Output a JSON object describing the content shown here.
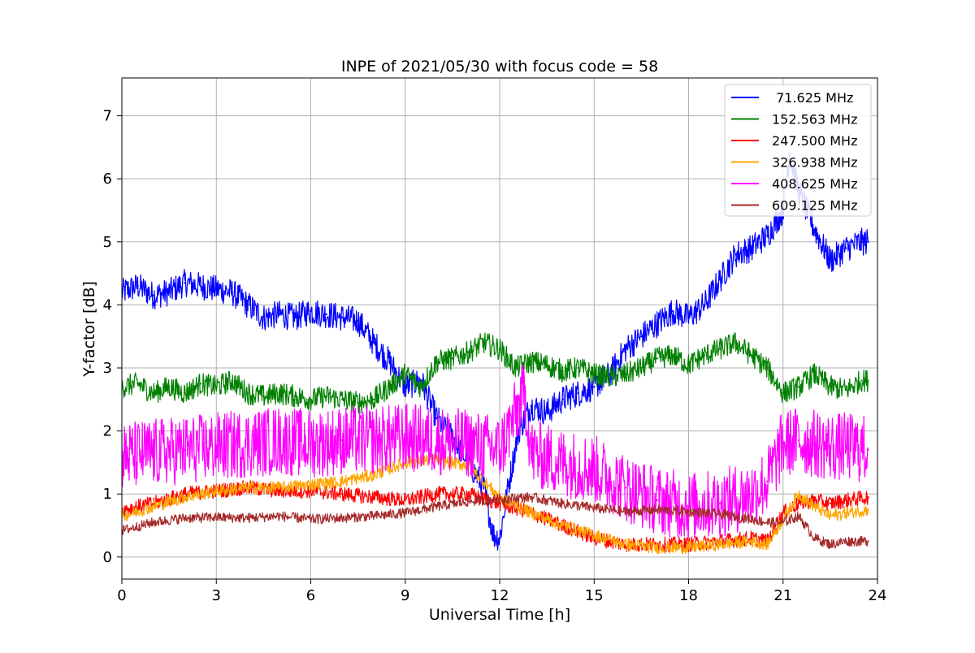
{
  "chart_data": {
    "type": "line",
    "title": "INPE of 2021/05/30 with focus code = 58",
    "xlabel": "Universal Time [h]",
    "ylabel": "Y-factor [dB]",
    "xlim": [
      0,
      24
    ],
    "ylim": [
      -0.35,
      7.6
    ],
    "x_ticks": [
      0,
      3,
      6,
      9,
      12,
      15,
      18,
      21,
      24
    ],
    "y_ticks": [
      0,
      1,
      2,
      3,
      4,
      5,
      6,
      7
    ],
    "grid": true,
    "legend_position": "top-right",
    "series": [
      {
        "name": " 71.625 MHz",
        "color": "#0000ff",
        "x": [
          0,
          0.5,
          1,
          1.5,
          2,
          2.5,
          3,
          3.5,
          4,
          4.5,
          5,
          5.5,
          6,
          6.5,
          7,
          7.5,
          8,
          8.5,
          9,
          9.5,
          10,
          10.5,
          11,
          11.5,
          11.8,
          12,
          12.3,
          12.6,
          13,
          13.5,
          14,
          14.5,
          15,
          15.5,
          16,
          16.5,
          17,
          17.5,
          18,
          18.5,
          19,
          19.5,
          20,
          20.5,
          21,
          21.2,
          21.5,
          22,
          22.5,
          23,
          23.5,
          23.7
        ],
        "y": [
          4.2,
          4.3,
          4.15,
          4.2,
          4.35,
          4.3,
          4.25,
          4.2,
          4.0,
          3.8,
          3.85,
          3.8,
          3.9,
          3.85,
          3.8,
          3.75,
          3.4,
          3.1,
          2.7,
          2.8,
          2.2,
          1.9,
          1.5,
          1.1,
          0.35,
          0.3,
          1.2,
          2.0,
          2.4,
          2.3,
          2.5,
          2.6,
          2.7,
          2.9,
          3.3,
          3.5,
          3.7,
          3.9,
          3.8,
          4.0,
          4.4,
          4.8,
          4.9,
          5.1,
          5.5,
          6.4,
          5.8,
          5.2,
          4.7,
          4.9,
          5.0,
          5.0
        ]
      },
      {
        "name": "152.563 MHz",
        "color": "#008000",
        "x": [
          0,
          0.5,
          1,
          1.5,
          2,
          2.5,
          3,
          3.5,
          4,
          4.5,
          5,
          5.5,
          6,
          6.5,
          7,
          7.5,
          8,
          8.5,
          9,
          9.5,
          10,
          10.5,
          11,
          11.5,
          12,
          12.5,
          13,
          13.5,
          14,
          14.5,
          15,
          15.5,
          16,
          16.5,
          17,
          17.5,
          18,
          18.5,
          19,
          19.5,
          20,
          20.5,
          21,
          21.5,
          22,
          22.5,
          23,
          23.5,
          23.7
        ],
        "y": [
          2.7,
          2.75,
          2.6,
          2.7,
          2.6,
          2.75,
          2.7,
          2.8,
          2.6,
          2.55,
          2.6,
          2.55,
          2.5,
          2.55,
          2.5,
          2.45,
          2.5,
          2.7,
          2.9,
          2.7,
          3.1,
          3.15,
          3.25,
          3.4,
          3.3,
          3.0,
          3.1,
          3.05,
          2.95,
          3.0,
          2.9,
          2.85,
          2.9,
          3.0,
          3.15,
          3.2,
          3.05,
          3.2,
          3.3,
          3.4,
          3.2,
          3.0,
          2.6,
          2.7,
          2.9,
          2.7,
          2.65,
          2.8,
          2.8
        ]
      },
      {
        "name": "247.500 MHz",
        "color": "#ff0000",
        "x": [
          0,
          1,
          2,
          3,
          4,
          5,
          6,
          7,
          8,
          9,
          10,
          11,
          12,
          13,
          14,
          15,
          16,
          17,
          18,
          19,
          20,
          20.5,
          21,
          21.5,
          22,
          22.5,
          23,
          23.7
        ],
        "y": [
          0.75,
          0.85,
          1.0,
          1.05,
          1.1,
          1.05,
          1.05,
          1.0,
          0.95,
          0.9,
          1.0,
          1.0,
          0.85,
          0.7,
          0.5,
          0.3,
          0.2,
          0.2,
          0.2,
          0.25,
          0.3,
          0.25,
          0.7,
          0.85,
          0.9,
          0.85,
          0.9,
          0.95
        ]
      },
      {
        "name": "326.938 MHz",
        "color": "#ffa500",
        "x": [
          0,
          1,
          2,
          3,
          4,
          5,
          6,
          7,
          8,
          9,
          10,
          11,
          12,
          13,
          14,
          15,
          16,
          17,
          18,
          19,
          20,
          20.5,
          21,
          21.5,
          22,
          22.5,
          23,
          23.7
        ],
        "y": [
          0.65,
          0.8,
          0.95,
          1.05,
          1.1,
          1.1,
          1.15,
          1.2,
          1.3,
          1.5,
          1.55,
          1.45,
          0.95,
          0.7,
          0.5,
          0.35,
          0.2,
          0.15,
          0.15,
          0.2,
          0.25,
          0.2,
          0.6,
          1.0,
          0.8,
          0.65,
          0.7,
          0.75
        ]
      },
      {
        "name": "408.625 MHz",
        "color": "#ff00ff",
        "x": [
          0,
          1,
          2,
          3,
          4,
          5,
          6,
          7,
          8,
          9,
          10,
          11,
          12,
          12.8,
          13,
          14,
          15,
          16,
          17,
          18,
          19,
          20,
          20.5,
          21,
          21.5,
          22,
          22.5,
          23,
          23.7
        ],
        "y": [
          1.6,
          1.65,
          1.7,
          1.75,
          1.8,
          1.85,
          1.8,
          1.85,
          1.85,
          1.9,
          1.85,
          1.8,
          1.7,
          2.6,
          1.65,
          1.5,
          1.4,
          1.1,
          0.9,
          0.8,
          0.85,
          1.0,
          1.2,
          1.8,
          1.85,
          1.8,
          1.75,
          1.75,
          1.7
        ]
      },
      {
        "name": "609.125 MHz",
        "color": "#a52a2a",
        "x": [
          0,
          1,
          2,
          3,
          4,
          5,
          6,
          7,
          8,
          9,
          10,
          11,
          12,
          13,
          14,
          15,
          16,
          17,
          18,
          19,
          20,
          20.5,
          21,
          21.5,
          22,
          22.5,
          23,
          23.7
        ],
        "y": [
          0.42,
          0.55,
          0.62,
          0.63,
          0.62,
          0.65,
          0.6,
          0.62,
          0.65,
          0.7,
          0.8,
          0.88,
          0.92,
          0.95,
          0.85,
          0.78,
          0.72,
          0.75,
          0.72,
          0.68,
          0.6,
          0.55,
          0.55,
          0.65,
          0.3,
          0.2,
          0.25,
          0.25
        ]
      }
    ]
  }
}
